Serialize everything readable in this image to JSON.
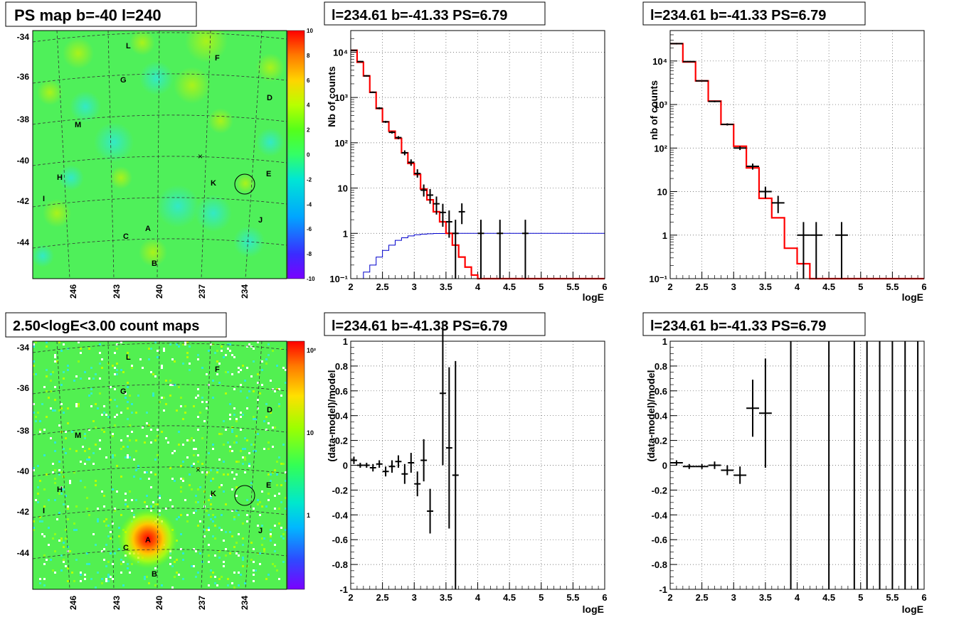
{
  "colors": {
    "model": "#ff0000",
    "data": "#000000",
    "ref_curve": "#0000cc",
    "grid": "#555555",
    "frame": "#000000"
  },
  "maps": {
    "ps_map": {
      "title": "PS map b=-40 l=240",
      "yticks": [
        "-34",
        "-36",
        "-38",
        "-40",
        "-42",
        "-44"
      ],
      "xticks": [
        "246",
        "243",
        "240",
        "237",
        "234"
      ],
      "colorbar": {
        "min": -10,
        "max": 10,
        "labels": [
          "10",
          "8",
          "6",
          "4",
          "2",
          "0",
          "-2",
          "-4",
          "-6",
          "-8",
          "-10"
        ]
      },
      "sources": [
        "L",
        "F",
        "G",
        "D",
        "M",
        "H",
        "E",
        "K",
        "I",
        "J",
        "A",
        "C",
        "B"
      ]
    },
    "count_map": {
      "title": "2.50<logE<3.00 count maps",
      "yticks": [
        "-34",
        "-36",
        "-38",
        "-40",
        "-42",
        "-44"
      ],
      "xticks": [
        "246",
        "243",
        "240",
        "237",
        "234"
      ],
      "colorbar": {
        "scale": "log",
        "labels": [
          "10²",
          "10",
          "1"
        ]
      },
      "sources": [
        "L",
        "F",
        "G",
        "D",
        "M",
        "H",
        "E",
        "K",
        "I",
        "J",
        "A",
        "C",
        "B"
      ]
    }
  },
  "chart_data": [
    {
      "type": "line",
      "title": "l=234.61 b=-41.33 PS=6.79",
      "xlabel": "logE",
      "ylabel": "Nb of counts",
      "xlim": [
        2,
        6
      ],
      "ylim": [
        0.1,
        30000
      ],
      "yscale": "log",
      "grid": true,
      "xticks": [
        "2",
        "2.5",
        "3",
        "3.5",
        "4",
        "4.5",
        "5",
        "5.5",
        "6"
      ],
      "yticks": [
        {
          "v": 0.1,
          "label": "10⁻¹"
        },
        {
          "v": 1,
          "label": "1"
        },
        {
          "v": 10,
          "label": "10"
        },
        {
          "v": 100,
          "label": "10²"
        },
        {
          "v": 1000,
          "label": "10³"
        },
        {
          "v": 10000,
          "label": "10⁴"
        }
      ],
      "model_steps": {
        "edges": [
          2.0,
          2.1,
          2.2,
          2.3,
          2.4,
          2.5,
          2.6,
          2.7,
          2.8,
          2.9,
          3.0,
          3.1,
          3.2,
          3.3,
          3.4,
          3.5,
          3.6,
          3.7,
          3.8,
          3.9,
          4.0,
          4.1,
          6.0
        ],
        "values": [
          11000,
          6000,
          3000,
          1300,
          570,
          290,
          180,
          125,
          60,
          35,
          20,
          9.5,
          5.5,
          3.0,
          1.8,
          1.0,
          0.55,
          0.3,
          0.18,
          0.12,
          0.1,
          0.1
        ]
      },
      "reference_steps": {
        "edges": [
          2.0,
          2.1,
          2.2,
          2.3,
          2.4,
          2.5,
          2.6,
          2.7,
          2.8,
          2.9,
          3.0,
          3.1,
          3.2,
          3.3,
          3.5,
          3.7,
          6.0
        ],
        "values": [
          0.07,
          0.1,
          0.14,
          0.2,
          0.3,
          0.42,
          0.55,
          0.7,
          0.8,
          0.88,
          0.93,
          0.96,
          0.98,
          0.99,
          1.0,
          1.0
        ]
      },
      "points": [
        {
          "x": 2.05,
          "y": 11000,
          "ylo": 10700,
          "yhi": 11300
        },
        {
          "x": 2.15,
          "y": 6200,
          "ylo": 6000,
          "yhi": 6400
        },
        {
          "x": 2.25,
          "y": 3000,
          "ylo": 2900,
          "yhi": 3100
        },
        {
          "x": 2.35,
          "y": 1300,
          "ylo": 1250,
          "yhi": 1350
        },
        {
          "x": 2.45,
          "y": 580,
          "ylo": 550,
          "yhi": 610
        },
        {
          "x": 2.55,
          "y": 290,
          "ylo": 275,
          "yhi": 305
        },
        {
          "x": 2.65,
          "y": 170,
          "ylo": 160,
          "yhi": 180
        },
        {
          "x": 2.75,
          "y": 130,
          "ylo": 120,
          "yhi": 140
        },
        {
          "x": 2.85,
          "y": 60,
          "ylo": 53,
          "yhi": 68
        },
        {
          "x": 2.95,
          "y": 37,
          "ylo": 31,
          "yhi": 43
        },
        {
          "x": 3.05,
          "y": 21,
          "ylo": 17,
          "yhi": 26
        },
        {
          "x": 3.15,
          "y": 9,
          "ylo": 6.5,
          "yhi": 12
        },
        {
          "x": 3.25,
          "y": 7,
          "ylo": 4.5,
          "yhi": 9.5
        },
        {
          "x": 3.35,
          "y": 4.5,
          "ylo": 2.6,
          "yhi": 6.5
        },
        {
          "x": 3.45,
          "y": 2.9,
          "ylo": 1.4,
          "yhi": 4.5
        },
        {
          "x": 3.55,
          "y": 1.8,
          "ylo": 0.8,
          "yhi": 3.2
        },
        {
          "x": 3.65,
          "y": 1,
          "ylo": 0.1,
          "yhi": 2
        },
        {
          "x": 3.75,
          "y": 3,
          "ylo": 1.6,
          "yhi": 4.6
        },
        {
          "x": 4.05,
          "y": 1,
          "ylo": 0.1,
          "yhi": 2
        },
        {
          "x": 4.35,
          "y": 1,
          "ylo": 0.1,
          "yhi": 2
        },
        {
          "x": 4.75,
          "y": 1,
          "ylo": 0.1,
          "yhi": 2
        }
      ]
    },
    {
      "type": "line",
      "title": "l=234.61 b=-41.33 PS=6.79",
      "xlabel": "logE",
      "ylabel": "nb of counts",
      "xlim": [
        2,
        6
      ],
      "ylim": [
        0.1,
        50000
      ],
      "yscale": "log",
      "grid": true,
      "xticks": [
        "2",
        "2.5",
        "3",
        "3.5",
        "4",
        "4.5",
        "5",
        "5.5",
        "6"
      ],
      "yticks": [
        {
          "v": 0.1,
          "label": "10⁻¹"
        },
        {
          "v": 1,
          "label": "1"
        },
        {
          "v": 10,
          "label": "10"
        },
        {
          "v": 100,
          "label": "10²"
        },
        {
          "v": 1000,
          "label": "10³"
        },
        {
          "v": 10000,
          "label": "10⁴"
        }
      ],
      "model_steps": {
        "edges": [
          2.0,
          2.2,
          2.4,
          2.6,
          2.8,
          3.0,
          3.2,
          3.4,
          3.6,
          3.8,
          4.0,
          4.2,
          6.0
        ],
        "values": [
          25000,
          9500,
          3500,
          1200,
          350,
          110,
          35,
          7,
          2.5,
          0.5,
          0.22,
          0.1
        ]
      },
      "points": [
        {
          "x": 2.1,
          "y": 25000,
          "ylo": 24000,
          "yhi": 26000
        },
        {
          "x": 2.3,
          "y": 9700,
          "ylo": 9400,
          "yhi": 10000
        },
        {
          "x": 2.5,
          "y": 3500,
          "ylo": 3400,
          "yhi": 3600
        },
        {
          "x": 2.7,
          "y": 1180,
          "ylo": 1130,
          "yhi": 1230
        },
        {
          "x": 2.9,
          "y": 350,
          "ylo": 330,
          "yhi": 370
        },
        {
          "x": 3.1,
          "y": 100,
          "ylo": 90,
          "yhi": 110
        },
        {
          "x": 3.3,
          "y": 38,
          "ylo": 32,
          "yhi": 44
        },
        {
          "x": 3.5,
          "y": 10,
          "ylo": 7,
          "yhi": 13
        },
        {
          "x": 3.7,
          "y": 5.5,
          "ylo": 3.2,
          "yhi": 8
        },
        {
          "x": 4.1,
          "y": 1,
          "ylo": 0.1,
          "yhi": 2
        },
        {
          "x": 4.3,
          "y": 1,
          "ylo": 0.1,
          "yhi": 2
        },
        {
          "x": 4.7,
          "y": 1,
          "ylo": 0.1,
          "yhi": 2
        }
      ]
    },
    {
      "type": "scatter",
      "title": "l=234.61 b=-41.33 PS=6.79",
      "xlabel": "logE",
      "ylabel": "(data-model)/model",
      "xlim": [
        2,
        6
      ],
      "ylim": [
        -1,
        1
      ],
      "grid": true,
      "xticks": [
        "2",
        "2.5",
        "3",
        "3.5",
        "4",
        "4.5",
        "5",
        "5.5",
        "6"
      ],
      "yticks": [
        "1",
        "0.8",
        "0.6",
        "0.4",
        "0.2",
        "0",
        "-0.2",
        "-0.4",
        "-0.6",
        "-0.8",
        "-1"
      ],
      "points": [
        {
          "x": 2.05,
          "y": 0.04,
          "err": 0.03
        },
        {
          "x": 2.15,
          "y": 0.0,
          "err": 0.02
        },
        {
          "x": 2.25,
          "y": 0.0,
          "err": 0.02
        },
        {
          "x": 2.35,
          "y": -0.02,
          "err": 0.03
        },
        {
          "x": 2.45,
          "y": 0.01,
          "err": 0.03
        },
        {
          "x": 2.55,
          "y": -0.05,
          "err": 0.04
        },
        {
          "x": 2.65,
          "y": -0.01,
          "err": 0.05
        },
        {
          "x": 2.75,
          "y": 0.03,
          "err": 0.05
        },
        {
          "x": 2.85,
          "y": -0.07,
          "err": 0.08
        },
        {
          "x": 2.95,
          "y": 0.02,
          "err": 0.08
        },
        {
          "x": 3.05,
          "y": -0.15,
          "err": 0.1
        },
        {
          "x": 3.15,
          "y": 0.04,
          "err": 0.17
        },
        {
          "x": 3.25,
          "y": -0.37,
          "err": 0.18
        },
        {
          "x": 3.45,
          "y": 0.58,
          "err": 0.58
        },
        {
          "x": 3.55,
          "y": 0.14,
          "err": 0.65
        },
        {
          "x": 3.65,
          "y": -0.08,
          "err": 0.92
        }
      ]
    },
    {
      "type": "scatter",
      "title": "l=234.61 b=-41.33 PS=6.79",
      "xlabel": "logE",
      "ylabel": "(data-model)/model",
      "xlim": [
        2,
        6
      ],
      "ylim": [
        -1,
        1
      ],
      "grid": true,
      "xticks": [
        "2",
        "2.5",
        "3",
        "3.5",
        "4",
        "4.5",
        "5",
        "5.5",
        "6"
      ],
      "yticks": [
        "1",
        "0.8",
        "0.6",
        "0.4",
        "0.2",
        "0",
        "-0.2",
        "-0.4",
        "-0.6",
        "-0.8",
        "-1"
      ],
      "points": [
        {
          "x": 2.1,
          "y": 0.02,
          "err": 0.02
        },
        {
          "x": 2.3,
          "y": -0.01,
          "err": 0.02
        },
        {
          "x": 2.5,
          "y": -0.01,
          "err": 0.02
        },
        {
          "x": 2.7,
          "y": 0.0,
          "err": 0.03
        },
        {
          "x": 2.9,
          "y": -0.04,
          "err": 0.04
        },
        {
          "x": 3.1,
          "y": -0.08,
          "err": 0.07
        },
        {
          "x": 3.3,
          "y": 0.46,
          "err": 0.23
        },
        {
          "x": 3.5,
          "y": 0.42,
          "err": 0.44
        }
      ],
      "full_range_bars_x": [
        3.9,
        4.5,
        4.9,
        5.1,
        5.3,
        5.5,
        5.7,
        5.9
      ]
    }
  ]
}
